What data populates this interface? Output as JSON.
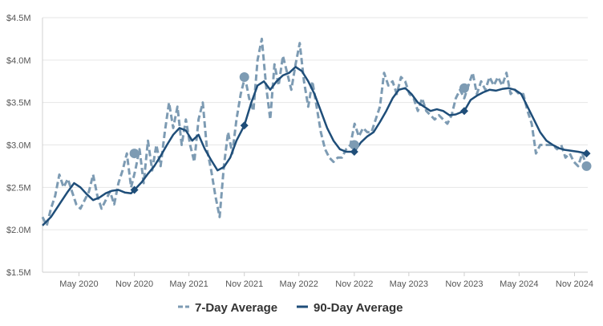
{
  "chart_data": {
    "type": "line",
    "title": "",
    "xlabel": "",
    "ylabel": "",
    "ylim": [
      1500000,
      4500000
    ],
    "xlim": [
      "2020-01-01",
      "2024-12-15"
    ],
    "grid": "horizontal",
    "legend_position": "bottom-center",
    "y_ticks": [
      {
        "value": 1500000,
        "label": "$1.5M"
      },
      {
        "value": 2000000,
        "label": "$2.0M"
      },
      {
        "value": 2500000,
        "label": "$2.5M"
      },
      {
        "value": 3000000,
        "label": "$3.0M"
      },
      {
        "value": 3500000,
        "label": "$3.5M"
      },
      {
        "value": 4000000,
        "label": "$4.0M"
      },
      {
        "value": 4500000,
        "label": "$4.5M"
      }
    ],
    "x_ticks": [
      {
        "date": "2020-05-01",
        "label": "May 2020"
      },
      {
        "date": "2020-11-01",
        "label": "Nov 2020"
      },
      {
        "date": "2021-05-01",
        "label": "May 2021"
      },
      {
        "date": "2021-11-01",
        "label": "Nov 2021"
      },
      {
        "date": "2022-05-01",
        "label": "May 2022"
      },
      {
        "date": "2022-11-01",
        "label": "Nov 2022"
      },
      {
        "date": "2023-05-01",
        "label": "May 2023"
      },
      {
        "date": "2023-11-01",
        "label": "Nov 2023"
      },
      {
        "date": "2024-05-01",
        "label": "May 2024"
      },
      {
        "date": "2024-11-01",
        "label": "Nov 2024"
      }
    ],
    "series": [
      {
        "name": "7-Day Average",
        "color": "#7d9bb3",
        "style": "dashed",
        "marker": "circle",
        "points": [
          [
            "2020-01-01",
            2150000
          ],
          [
            "2020-01-15",
            2050000
          ],
          [
            "2020-01-29",
            2250000
          ],
          [
            "2020-02-12",
            2400000
          ],
          [
            "2020-02-26",
            2650000
          ],
          [
            "2020-03-11",
            2500000
          ],
          [
            "2020-03-25",
            2600000
          ],
          [
            "2020-04-08",
            2450000
          ],
          [
            "2020-04-22",
            2300000
          ],
          [
            "2020-05-06",
            2250000
          ],
          [
            "2020-05-20",
            2350000
          ],
          [
            "2020-06-03",
            2450000
          ],
          [
            "2020-06-17",
            2650000
          ],
          [
            "2020-07-01",
            2400000
          ],
          [
            "2020-07-15",
            2250000
          ],
          [
            "2020-07-29",
            2350000
          ],
          [
            "2020-08-12",
            2450000
          ],
          [
            "2020-08-26",
            2300000
          ],
          [
            "2020-09-09",
            2550000
          ],
          [
            "2020-09-23",
            2700000
          ],
          [
            "2020-10-07",
            2900000
          ],
          [
            "2020-10-21",
            2500000
          ],
          [
            "2020-11-04",
            2700000
          ],
          [
            "2020-11-18",
            2950000
          ],
          [
            "2020-12-02",
            2550000
          ],
          [
            "2020-12-16",
            3050000
          ],
          [
            "2020-12-30",
            2700000
          ],
          [
            "2021-01-13",
            3000000
          ],
          [
            "2021-01-27",
            2750000
          ],
          [
            "2021-02-10",
            3150000
          ],
          [
            "2021-02-24",
            3500000
          ],
          [
            "2021-03-10",
            3200000
          ],
          [
            "2021-03-24",
            3450000
          ],
          [
            "2021-04-07",
            3000000
          ],
          [
            "2021-04-21",
            3300000
          ],
          [
            "2021-05-05",
            3000000
          ],
          [
            "2021-05-19",
            2800000
          ],
          [
            "2021-06-02",
            3300000
          ],
          [
            "2021-06-16",
            3500000
          ],
          [
            "2021-06-30",
            2950000
          ],
          [
            "2021-07-14",
            2700000
          ],
          [
            "2021-07-28",
            2400000
          ],
          [
            "2021-08-11",
            2150000
          ],
          [
            "2021-08-25",
            2750000
          ],
          [
            "2021-09-08",
            3150000
          ],
          [
            "2021-09-22",
            2900000
          ],
          [
            "2021-10-06",
            3300000
          ],
          [
            "2021-10-20",
            3600000
          ],
          [
            "2021-11-03",
            3800000
          ],
          [
            "2021-11-17",
            3550000
          ],
          [
            "2021-12-01",
            3400000
          ],
          [
            "2021-12-15",
            4000000
          ],
          [
            "2021-12-29",
            4250000
          ],
          [
            "2022-01-12",
            3700000
          ],
          [
            "2022-01-26",
            3300000
          ],
          [
            "2022-02-09",
            3950000
          ],
          [
            "2022-02-23",
            3700000
          ],
          [
            "2022-03-09",
            4050000
          ],
          [
            "2022-03-23",
            3850000
          ],
          [
            "2022-04-06",
            3650000
          ],
          [
            "2022-04-20",
            3950000
          ],
          [
            "2022-05-04",
            4200000
          ],
          [
            "2022-05-18",
            3750000
          ],
          [
            "2022-06-01",
            3450000
          ],
          [
            "2022-06-15",
            3750000
          ],
          [
            "2022-06-29",
            3450000
          ],
          [
            "2022-07-13",
            3150000
          ],
          [
            "2022-07-27",
            2950000
          ],
          [
            "2022-08-10",
            2850000
          ],
          [
            "2022-08-24",
            2800000
          ],
          [
            "2022-09-07",
            2850000
          ],
          [
            "2022-09-21",
            2850000
          ],
          [
            "2022-10-05",
            2950000
          ],
          [
            "2022-10-19",
            3000000
          ],
          [
            "2022-11-02",
            3250000
          ],
          [
            "2022-11-16",
            3100000
          ],
          [
            "2022-11-30",
            3200000
          ],
          [
            "2022-12-14",
            3150000
          ],
          [
            "2022-12-28",
            3150000
          ],
          [
            "2023-01-11",
            3300000
          ],
          [
            "2023-01-25",
            3450000
          ],
          [
            "2023-02-08",
            3850000
          ],
          [
            "2023-02-22",
            3700000
          ],
          [
            "2023-03-08",
            3750000
          ],
          [
            "2023-03-22",
            3600000
          ],
          [
            "2023-04-05",
            3800000
          ],
          [
            "2023-04-19",
            3750000
          ],
          [
            "2023-05-03",
            3600000
          ],
          [
            "2023-05-17",
            3550000
          ],
          [
            "2023-05-31",
            3400000
          ],
          [
            "2023-06-14",
            3550000
          ],
          [
            "2023-06-28",
            3400000
          ],
          [
            "2023-07-12",
            3350000
          ],
          [
            "2023-07-26",
            3300000
          ],
          [
            "2023-08-09",
            3350000
          ],
          [
            "2023-08-23",
            3300000
          ],
          [
            "2023-09-06",
            3250000
          ],
          [
            "2023-09-20",
            3350000
          ],
          [
            "2023-10-04",
            3550000
          ],
          [
            "2023-10-18",
            3650000
          ],
          [
            "2023-11-01",
            3550000
          ],
          [
            "2023-11-15",
            3700000
          ],
          [
            "2023-11-29",
            3850000
          ],
          [
            "2023-12-13",
            3600000
          ],
          [
            "2023-12-27",
            3750000
          ],
          [
            "2024-01-10",
            3650000
          ],
          [
            "2024-01-24",
            3800000
          ],
          [
            "2024-02-07",
            3700000
          ],
          [
            "2024-02-21",
            3800000
          ],
          [
            "2024-03-06",
            3700000
          ],
          [
            "2024-03-20",
            3850000
          ],
          [
            "2024-04-03",
            3600000
          ],
          [
            "2024-04-17",
            3650000
          ],
          [
            "2024-05-01",
            3600000
          ],
          [
            "2024-05-15",
            3600000
          ],
          [
            "2024-05-29",
            3400000
          ],
          [
            "2024-06-12",
            3250000
          ],
          [
            "2024-06-26",
            2900000
          ],
          [
            "2024-07-10",
            3000000
          ],
          [
            "2024-07-24",
            3000000
          ],
          [
            "2024-08-07",
            3000000
          ],
          [
            "2024-08-21",
            3000000
          ],
          [
            "2024-09-04",
            2950000
          ],
          [
            "2024-09-18",
            3000000
          ],
          [
            "2024-10-02",
            2850000
          ],
          [
            "2024-10-16",
            2900000
          ],
          [
            "2024-10-30",
            2800000
          ],
          [
            "2024-11-13",
            2750000
          ],
          [
            "2024-11-27",
            2900000
          ],
          [
            "2024-12-11",
            2750000
          ]
        ],
        "markers": [
          [
            "2020-11-01",
            2900000
          ],
          [
            "2021-11-01",
            3800000
          ],
          [
            "2022-11-01",
            3000000
          ],
          [
            "2023-11-01",
            3670000
          ],
          [
            "2024-12-11",
            2750000
          ]
        ]
      },
      {
        "name": "90-Day Average",
        "color": "#1f4e79",
        "style": "solid",
        "marker": "diamond",
        "points": [
          [
            "2020-01-01",
            2050000
          ],
          [
            "2020-01-29",
            2150000
          ],
          [
            "2020-02-26",
            2300000
          ],
          [
            "2020-03-25",
            2450000
          ],
          [
            "2020-04-15",
            2550000
          ],
          [
            "2020-05-06",
            2500000
          ],
          [
            "2020-05-27",
            2420000
          ],
          [
            "2020-06-17",
            2350000
          ],
          [
            "2020-07-08",
            2380000
          ],
          [
            "2020-07-29",
            2430000
          ],
          [
            "2020-08-19",
            2460000
          ],
          [
            "2020-09-09",
            2470000
          ],
          [
            "2020-09-30",
            2440000
          ],
          [
            "2020-10-21",
            2430000
          ],
          [
            "2020-11-01",
            2470000
          ],
          [
            "2020-11-25",
            2560000
          ],
          [
            "2020-12-16",
            2660000
          ],
          [
            "2021-01-06",
            2750000
          ],
          [
            "2021-01-27",
            2870000
          ],
          [
            "2021-02-17",
            3000000
          ],
          [
            "2021-03-10",
            3120000
          ],
          [
            "2021-03-31",
            3200000
          ],
          [
            "2021-04-21",
            3170000
          ],
          [
            "2021-05-12",
            3050000
          ],
          [
            "2021-06-02",
            3120000
          ],
          [
            "2021-06-23",
            2950000
          ],
          [
            "2021-07-14",
            2820000
          ],
          [
            "2021-08-04",
            2700000
          ],
          [
            "2021-08-25",
            2740000
          ],
          [
            "2021-09-15",
            2850000
          ],
          [
            "2021-10-06",
            3050000
          ],
          [
            "2021-11-01",
            3230000
          ],
          [
            "2021-11-24",
            3500000
          ],
          [
            "2021-12-15",
            3700000
          ],
          [
            "2022-01-05",
            3750000
          ],
          [
            "2022-01-26",
            3650000
          ],
          [
            "2022-02-16",
            3750000
          ],
          [
            "2022-03-09",
            3820000
          ],
          [
            "2022-03-30",
            3850000
          ],
          [
            "2022-04-20",
            3920000
          ],
          [
            "2022-05-11",
            3870000
          ],
          [
            "2022-06-01",
            3750000
          ],
          [
            "2022-06-22",
            3600000
          ],
          [
            "2022-07-13",
            3400000
          ],
          [
            "2022-08-03",
            3200000
          ],
          [
            "2022-08-24",
            3050000
          ],
          [
            "2022-09-14",
            2950000
          ],
          [
            "2022-10-05",
            2920000
          ],
          [
            "2022-11-01",
            2920000
          ],
          [
            "2022-11-23",
            3030000
          ],
          [
            "2022-12-14",
            3100000
          ],
          [
            "2023-01-04",
            3150000
          ],
          [
            "2023-01-25",
            3270000
          ],
          [
            "2023-02-15",
            3400000
          ],
          [
            "2023-03-08",
            3550000
          ],
          [
            "2023-03-29",
            3650000
          ],
          [
            "2023-04-19",
            3670000
          ],
          [
            "2023-05-10",
            3600000
          ],
          [
            "2023-05-31",
            3500000
          ],
          [
            "2023-06-21",
            3450000
          ],
          [
            "2023-07-12",
            3400000
          ],
          [
            "2023-08-02",
            3420000
          ],
          [
            "2023-08-23",
            3400000
          ],
          [
            "2023-09-13",
            3350000
          ],
          [
            "2023-10-04",
            3360000
          ],
          [
            "2023-11-01",
            3400000
          ],
          [
            "2023-11-22",
            3530000
          ],
          [
            "2023-12-13",
            3580000
          ],
          [
            "2024-01-03",
            3620000
          ],
          [
            "2024-01-24",
            3650000
          ],
          [
            "2024-02-14",
            3640000
          ],
          [
            "2024-03-06",
            3660000
          ],
          [
            "2024-03-27",
            3670000
          ],
          [
            "2024-04-17",
            3650000
          ],
          [
            "2024-05-08",
            3600000
          ],
          [
            "2024-05-29",
            3450000
          ],
          [
            "2024-06-19",
            3300000
          ],
          [
            "2024-07-10",
            3150000
          ],
          [
            "2024-07-31",
            3050000
          ],
          [
            "2024-08-21",
            3000000
          ],
          [
            "2024-09-11",
            2960000
          ],
          [
            "2024-10-02",
            2940000
          ],
          [
            "2024-10-23",
            2930000
          ],
          [
            "2024-11-13",
            2920000
          ],
          [
            "2024-12-11",
            2900000
          ]
        ],
        "markers": [
          [
            "2020-11-01",
            2470000
          ],
          [
            "2021-11-01",
            3230000
          ],
          [
            "2022-11-01",
            2920000
          ],
          [
            "2023-11-01",
            3400000
          ],
          [
            "2024-12-11",
            2900000
          ]
        ]
      }
    ]
  }
}
